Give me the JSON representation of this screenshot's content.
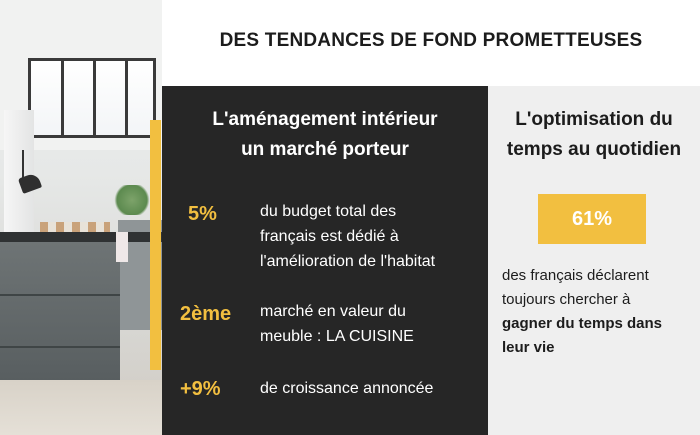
{
  "title": "DES TENDANCES DE FOND PROMETTEUSES",
  "left_panel": {
    "heading_line1": "L'aménagement intérieur",
    "heading_line2": "un marché porteur",
    "stats": [
      {
        "value": "5%",
        "text_lines": [
          "du budget total des",
          "français est dédié à",
          "l'amélioration de l'habitat"
        ]
      },
      {
        "value": "2ème",
        "text_lines": [
          "marché en valeur du",
          "meuble : LA CUISINE"
        ]
      },
      {
        "value": "+9%",
        "text_lines": [
          "de croissance annoncée"
        ]
      }
    ]
  },
  "right_panel": {
    "heading_line1": "L'optimisation du",
    "heading_line2": "temps au quotidien",
    "badge_value": "61%",
    "text_line1": "des français déclarent",
    "text_line2": "toujours chercher à",
    "text_bold_line1": "gagner du temps dans",
    "text_bold_line2": "leur vie"
  },
  "colors": {
    "accent": "#f2bf40",
    "dark_panel": "#262626",
    "light_panel": "#efefef"
  }
}
